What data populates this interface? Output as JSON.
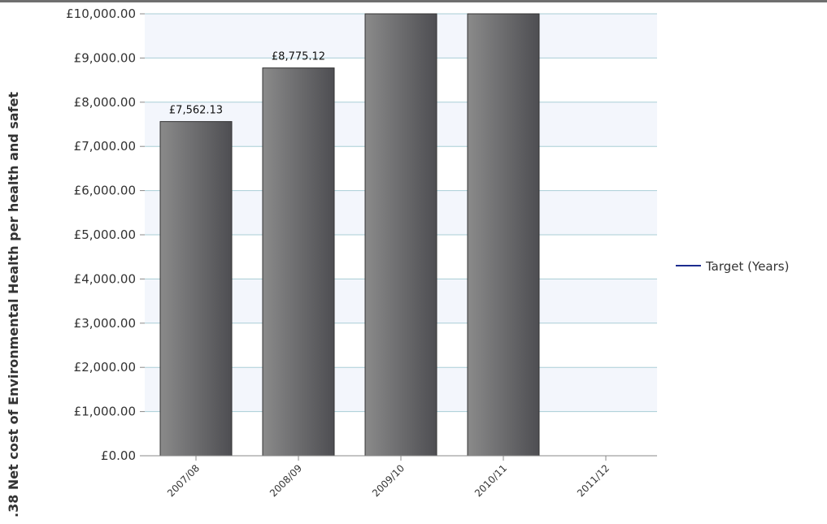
{
  "colors": {
    "bar_fill_light": "#8a8a8a",
    "bar_fill_dark": "#4e4e52",
    "bar_stroke": "#333333",
    "plot_band": "#f3f6fc",
    "grid": "#a9cdd6",
    "target_line": "#1c2b8f"
  },
  "chart_data": {
    "type": "bar",
    "categories": [
      "2007/08",
      "2008/09",
      "2009/10",
      "2010/11",
      "2011/12"
    ],
    "series": [
      {
        "values": [
          7562.13,
          8775.12,
          10000,
          10000,
          null
        ],
        "data_labels": [
          "£7,562.13",
          "£8,775.12",
          "",
          "",
          ""
        ]
      }
    ],
    "ylabel": ".38 Net cost of Environmental Health per health and safet",
    "xlabel": "",
    "ylim": [
      0,
      10000
    ],
    "yticks": [
      {
        "value": 0,
        "label": "£0.00"
      },
      {
        "value": 1000,
        "label": "£1,000.00"
      },
      {
        "value": 2000,
        "label": "£2,000.00"
      },
      {
        "value": 3000,
        "label": "£3,000.00"
      },
      {
        "value": 4000,
        "label": "£4,000.00"
      },
      {
        "value": 5000,
        "label": "£5,000.00"
      },
      {
        "value": 6000,
        "label": "£6,000.00"
      },
      {
        "value": 7000,
        "label": "£7,000.00"
      },
      {
        "value": 8000,
        "label": "£8,000.00"
      },
      {
        "value": 9000,
        "label": "£9,000.00"
      },
      {
        "value": 10000,
        "label": "£10,000.00"
      }
    ],
    "grid": true,
    "legend": {
      "position": "right",
      "entries": [
        {
          "name": "Target (Years)",
          "marker": "line"
        }
      ]
    }
  }
}
